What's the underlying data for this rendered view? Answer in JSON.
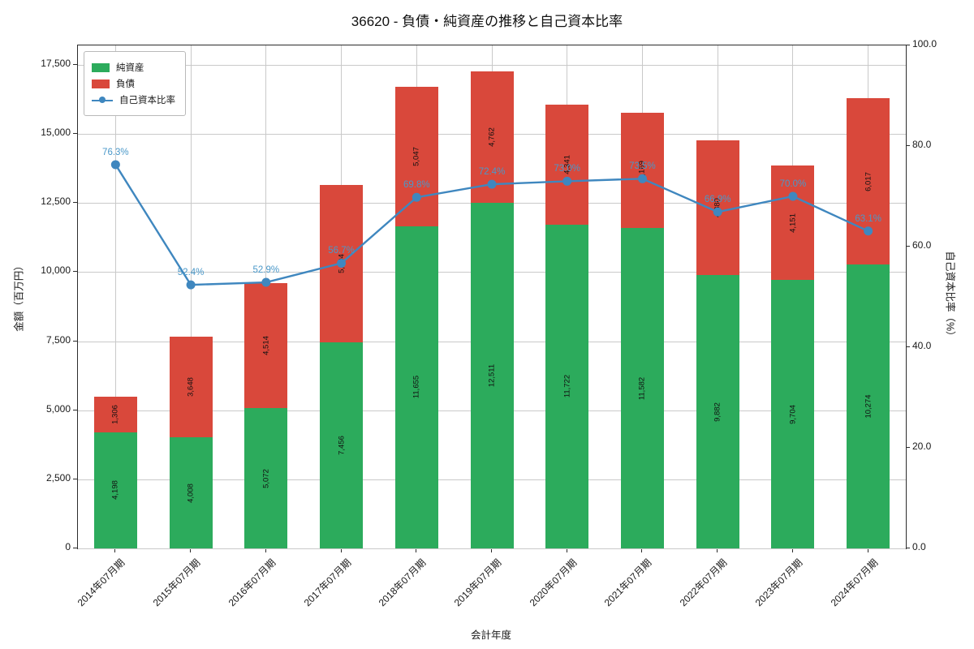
{
  "title": "36620 - 負債・純資産の推移と自己資本比率",
  "chart_data": {
    "type": "bar",
    "stacked": true,
    "title": "36620 - 負債・純資産の推移と自己資本比率",
    "xlabel": "会計年度",
    "ylabel_left": "金額（百万円）",
    "ylabel_right": "自己資本比率（%）",
    "categories": [
      "2014年07月期",
      "2015年07月期",
      "2016年07月期",
      "2017年07月期",
      "2018年07月期",
      "2019年07月期",
      "2020年07月期",
      "2021年07月期",
      "2022年07月期",
      "2023年07月期",
      "2024年07月期"
    ],
    "series": [
      {
        "name": "純資産",
        "color": "#2cab5c",
        "values": [
          4198,
          4008,
          5072,
          7456,
          11655,
          12511,
          11722,
          11582,
          9882,
          9704,
          10274
        ]
      },
      {
        "name": "負債",
        "color": "#d9483b",
        "values": [
          1306,
          3648,
          4514,
          5694,
          5047,
          4762,
          4341,
          4169,
          4880,
          4151,
          6017
        ]
      }
    ],
    "line_series": {
      "name": "自己資本比率",
      "color": "#3f87bf",
      "label_color": "#4a98c9",
      "values": [
        76.3,
        52.4,
        52.9,
        56.7,
        69.8,
        72.4,
        73.0,
        73.5,
        66.9,
        70.0,
        63.1
      ],
      "labels": [
        "76.3%",
        "52.4%",
        "52.9%",
        "56.7%",
        "69.8%",
        "72.4%",
        "73.0%",
        "73.5%",
        "66.9%",
        "70.0%",
        "63.1%"
      ]
    },
    "legend_position": "upper-left",
    "grid": true,
    "yleft_ticks": [
      0,
      2500,
      5000,
      7500,
      10000,
      12500,
      15000,
      17500
    ],
    "yleft_max": 18200,
    "yright_ticks": [
      0,
      20,
      40,
      60,
      80,
      100
    ],
    "yright_tick_labels": [
      "0.0",
      "20.0",
      "40.0",
      "60.0",
      "80.0",
      "100.0"
    ],
    "yright_max": 100
  }
}
